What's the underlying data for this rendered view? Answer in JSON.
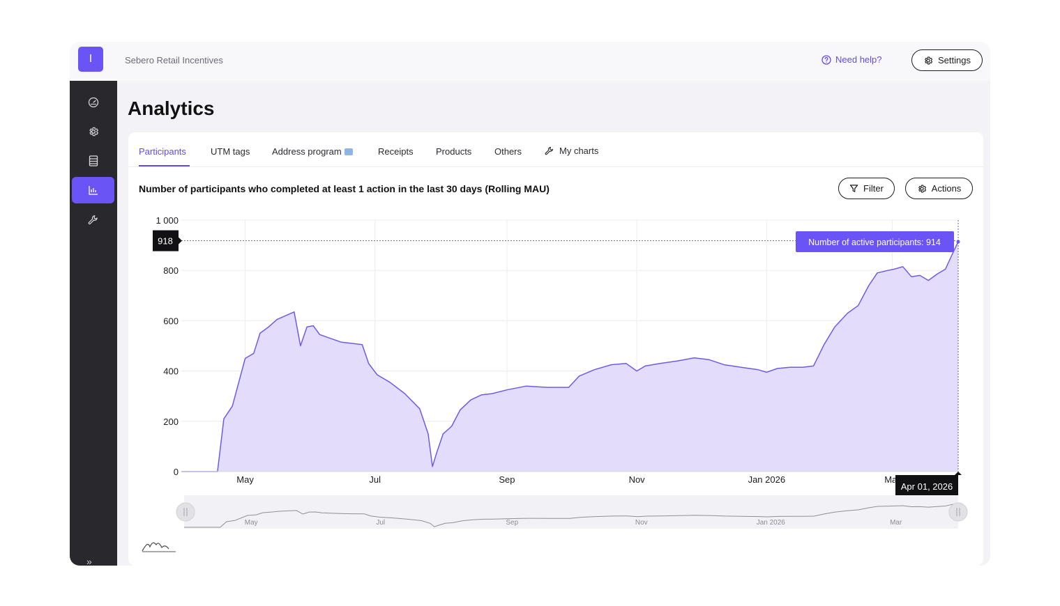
{
  "topbar": {
    "logo_letter": "I",
    "org_name": "Sebero Retail Incentives",
    "help_label": "Need help?",
    "settings_label": "Settings"
  },
  "sidebar": {
    "items": [
      {
        "icon": "dashboard-gauge-icon",
        "active": false
      },
      {
        "icon": "gear-icon",
        "active": false
      },
      {
        "icon": "list-icon",
        "active": false
      },
      {
        "icon": "bar-chart-icon",
        "active": true
      },
      {
        "icon": "wrench-icon",
        "active": false
      }
    ],
    "collapse_icon": "double-chevron-right-icon"
  },
  "page": {
    "title": "Analytics"
  },
  "tabs": [
    {
      "label": "Participants",
      "active": true
    },
    {
      "label": "UTM tags",
      "active": false
    },
    {
      "label": "Address program",
      "active": false,
      "badge": "new-icon"
    },
    {
      "label": "Receipts",
      "active": false
    },
    {
      "label": "Products",
      "active": false
    },
    {
      "label": "Others",
      "active": false
    },
    {
      "label": "My charts",
      "active": false,
      "icon": "wrench-icon"
    }
  ],
  "toolbar": {
    "filter_label": "Filter",
    "actions_label": "Actions"
  },
  "colors": {
    "accent": "#6b54f5",
    "area_fill": "#e3ddfb",
    "line": "#6f5ae8",
    "sidebar": "#29282c"
  },
  "chart_data": {
    "type": "area",
    "title": "Number of participants who completed at least 1 action in the last 30 days (Rolling MAU)",
    "y_ticks": [
      "0",
      "200",
      "400",
      "600",
      "800",
      "1 000"
    ],
    "ylim": [
      0,
      1000
    ],
    "x_ticks": [
      "May",
      "Jul",
      "Sep",
      "Nov",
      "Jan 2026",
      "Mar"
    ],
    "x": [
      "2025-04-01",
      "2025-04-18",
      "2025-04-21",
      "2025-04-25",
      "2025-05-01",
      "2025-05-05",
      "2025-05-08",
      "2025-05-12",
      "2025-05-16",
      "2025-05-20",
      "2025-05-24",
      "2025-05-27",
      "2025-05-30",
      "2025-06-02",
      "2025-06-05",
      "2025-06-10",
      "2025-06-15",
      "2025-06-20",
      "2025-06-25",
      "2025-06-28",
      "2025-07-02",
      "2025-07-08",
      "2025-07-15",
      "2025-07-22",
      "2025-07-26",
      "2025-07-28",
      "2025-07-30",
      "2025-08-02",
      "2025-08-06",
      "2025-08-10",
      "2025-08-15",
      "2025-08-20",
      "2025-08-25",
      "2025-09-01",
      "2025-09-10",
      "2025-09-20",
      "2025-09-30",
      "2025-10-05",
      "2025-10-12",
      "2025-10-20",
      "2025-10-27",
      "2025-11-01",
      "2025-11-05",
      "2025-11-12",
      "2025-11-20",
      "2025-11-28",
      "2025-12-05",
      "2025-12-12",
      "2025-12-20",
      "2025-12-28",
      "2026-01-01",
      "2026-01-06",
      "2026-01-12",
      "2026-01-18",
      "2026-01-23",
      "2026-01-28",
      "2026-02-02",
      "2026-02-08",
      "2026-02-13",
      "2026-02-18",
      "2026-02-22",
      "2026-02-27",
      "2026-03-02",
      "2026-03-06",
      "2026-03-10",
      "2026-03-14",
      "2026-03-18",
      "2026-03-22",
      "2026-03-26",
      "2026-03-29",
      "2026-04-01"
    ],
    "y": [
      0,
      0,
      210,
      260,
      450,
      470,
      550,
      575,
      605,
      620,
      635,
      500,
      575,
      580,
      545,
      530,
      515,
      510,
      505,
      430,
      385,
      355,
      310,
      250,
      150,
      20,
      75,
      150,
      180,
      245,
      285,
      305,
      310,
      325,
      340,
      335,
      335,
      380,
      405,
      425,
      430,
      400,
      420,
      430,
      440,
      452,
      445,
      425,
      415,
      405,
      395,
      410,
      415,
      415,
      420,
      505,
      575,
      630,
      660,
      740,
      790,
      800,
      805,
      815,
      775,
      780,
      760,
      785,
      805,
      860,
      914
    ],
    "series": [
      {
        "name": "Number of active participants",
        "highlight_value": 914
      }
    ],
    "crosshair": {
      "y_label": "918",
      "x_label": "Apr 01, 2026"
    },
    "tooltip": "Number of active participants: 914",
    "navigator": {
      "labels": [
        "May",
        "Jul",
        "Sep",
        "Nov",
        "Jan 2026",
        "Mar"
      ]
    },
    "grid": true,
    "legend": "none"
  },
  "footer": {
    "chart_type_icon": "area-chart-toggle-icon"
  }
}
